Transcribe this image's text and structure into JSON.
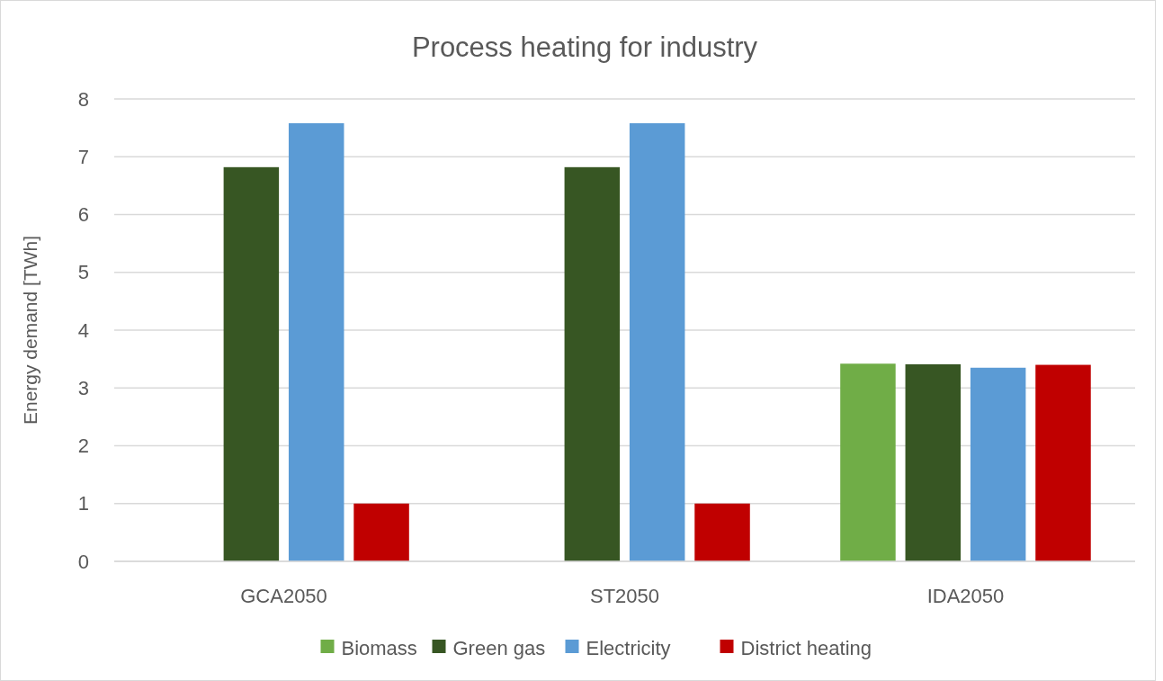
{
  "chart_data": {
    "type": "bar",
    "title": "Process heating for industry",
    "ylabel": "Energy demand [TWh]",
    "categories": [
      "GCA2050",
      "ST2050",
      "IDA2050"
    ],
    "series": [
      {
        "name": "Biomass",
        "color": "#70ad47",
        "values": [
          0,
          0,
          3.42
        ]
      },
      {
        "name": "Green gas",
        "color": "#375623",
        "values": [
          6.82,
          6.82,
          3.41
        ]
      },
      {
        "name": "Electricity",
        "color": "#5b9bd5",
        "values": [
          7.58,
          7.58,
          3.35
        ]
      },
      {
        "name": "District heating",
        "color": "#c00000",
        "values": [
          1.0,
          1.0,
          3.4
        ]
      }
    ],
    "ylim": [
      0,
      8
    ],
    "yticks": [
      0,
      1,
      2,
      3,
      4,
      5,
      6,
      7,
      8
    ],
    "grid": "y",
    "legend": "bottom"
  }
}
